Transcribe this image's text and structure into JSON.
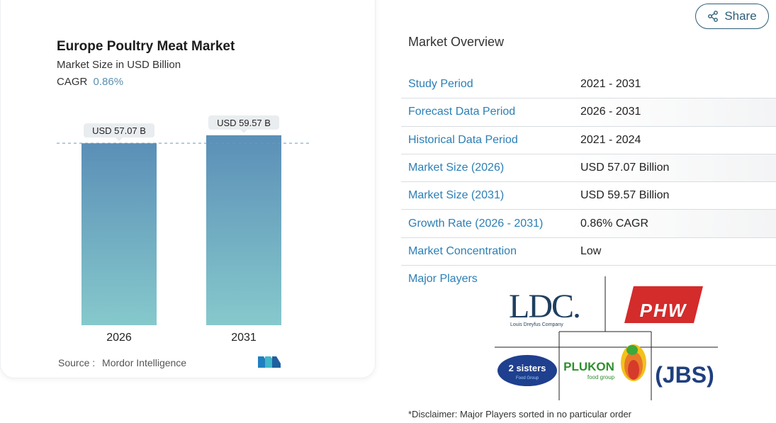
{
  "chart": {
    "title": "Europe Poultry Meat Market",
    "subtitle": "Market Size in USD Billion",
    "cagr_label": "CAGR",
    "cagr_value": "0.86%",
    "source_label": "Source :",
    "source_value": "Mordor Intelligence"
  },
  "chart_data": {
    "type": "bar",
    "title": "Europe Poultry Meat Market",
    "ylabel": "Market Size in USD Billion",
    "categories": [
      "2026",
      "2031"
    ],
    "values": [
      57.07,
      59.57
    ],
    "data_labels": [
      "USD 57.07 B",
      "USD 59.57 B"
    ],
    "reference_line_value": 57.07,
    "bar_colors": {
      "top": "#5b8fb7",
      "bottom": "#86c9cc"
    }
  },
  "share": {
    "label": "Share"
  },
  "overview": {
    "title": "Market Overview",
    "rows": [
      {
        "label": "Study Period",
        "value": "2021 - 2031"
      },
      {
        "label": "Forecast Data Period",
        "value": "2026 - 2031"
      },
      {
        "label": "Historical Data Period",
        "value": "2021 - 2024"
      },
      {
        "label": "Market Size (2026)",
        "value": "USD 57.07 Billion"
      },
      {
        "label": "Market Size (2031)",
        "value": "USD 59.57 Billion"
      },
      {
        "label": "Growth Rate (2026 - 2031)",
        "value": "0.86% CAGR"
      },
      {
        "label": "Market Concentration",
        "value": "Low"
      }
    ]
  },
  "players": {
    "label": "Major Players",
    "logos": {
      "ldc": {
        "main": "LDC.",
        "sub": "Louis Dreyfus Company"
      },
      "phw": {
        "main": "PHW"
      },
      "two_sisters": {
        "main": "2 sisters",
        "sub": "Food Group"
      },
      "plukon": {
        "main": "PLUKON",
        "sub": "food group"
      },
      "jbs": {
        "main": "(JBS)"
      }
    },
    "disclaimer": "*Disclaimer: Major Players sorted in no particular order"
  },
  "colors": {
    "accent_blue": "#2b7fb5",
    "share_border": "#2c5d77",
    "label_pill": "#e9edf0"
  }
}
